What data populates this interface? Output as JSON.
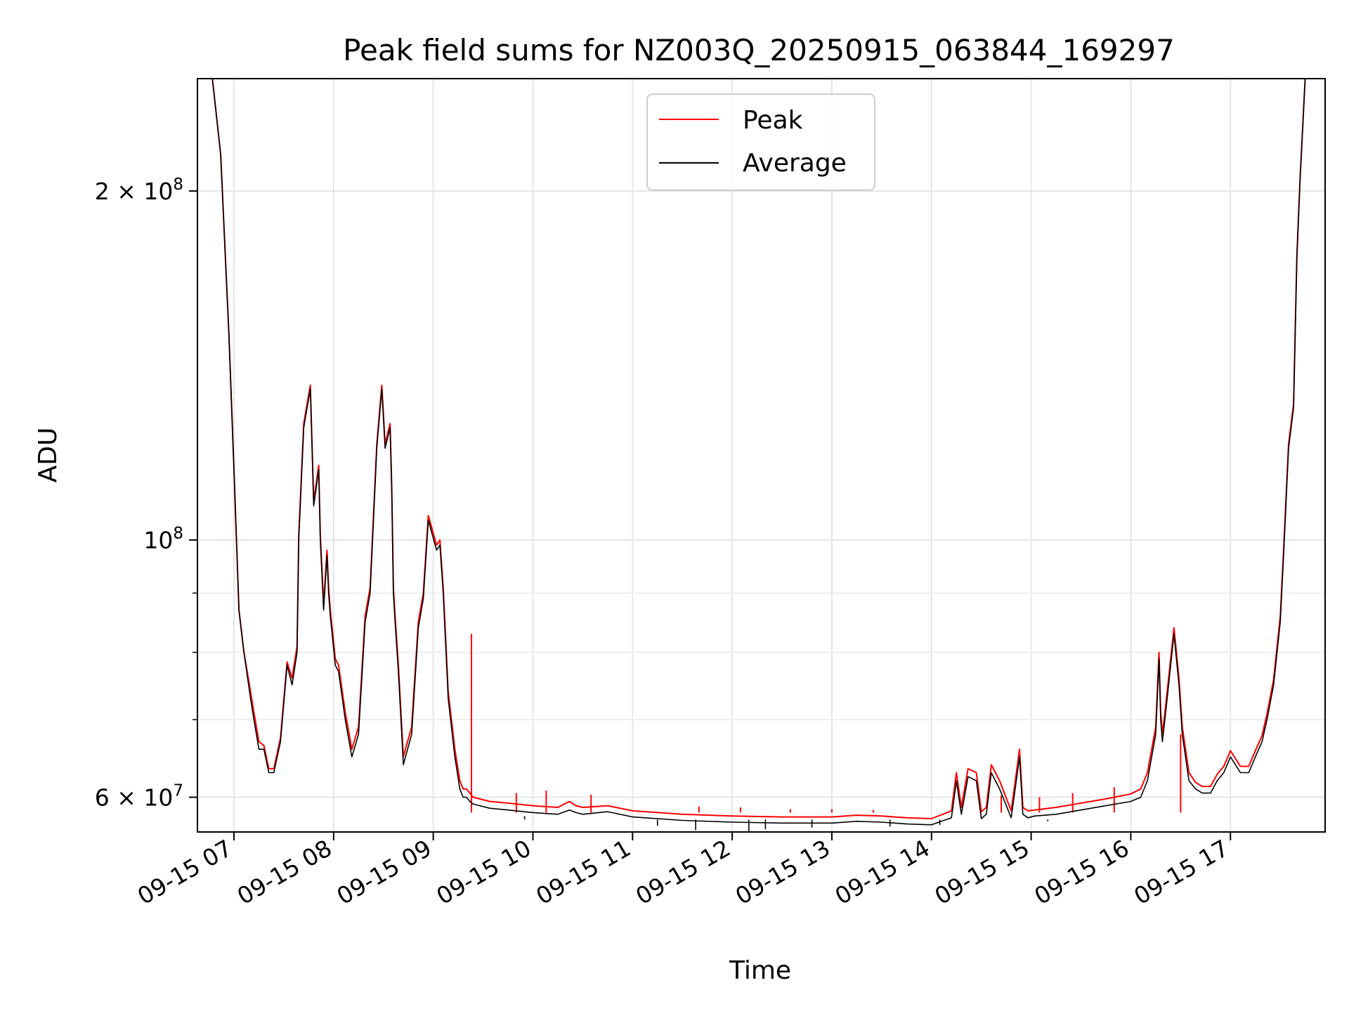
{
  "chart_data": {
    "type": "line",
    "title": "Peak field sums for NZ003Q_20250915_063844_169297",
    "xlabel": "Time",
    "ylabel": "ADU",
    "y_scale": "log",
    "ylim": [
      56000000,
      250000000
    ],
    "xlim": [
      "2025-09-15 06:38",
      "2025-09-15 17:57"
    ],
    "grid": true,
    "legend_position": "upper center",
    "x_ticks": [
      "09-15 07",
      "09-15 08",
      "09-15 09",
      "09-15 10",
      "09-15 11",
      "09-15 12",
      "09-15 13",
      "09-15 14",
      "09-15 15",
      "09-15 16",
      "09-15 17"
    ],
    "x_tick_times": [
      "2025-09-15 07:00",
      "2025-09-15 08:00",
      "2025-09-15 09:00",
      "2025-09-15 10:00",
      "2025-09-15 11:00",
      "2025-09-15 12:00",
      "2025-09-15 13:00",
      "2025-09-15 14:00",
      "2025-09-15 15:00",
      "2025-09-15 16:00",
      "2025-09-15 17:00"
    ],
    "y_ticks": [
      {
        "value": 60000000,
        "mantissa": "6",
        "exp": "7"
      },
      {
        "value": 100000000,
        "mantissa": "",
        "exp": "8"
      },
      {
        "value": 200000000,
        "mantissa": "2",
        "exp": "8"
      }
    ],
    "y_minor_ticks": [
      70000000,
      80000000,
      90000000
    ],
    "series": [
      {
        "name": "Peak",
        "color": "#ff0000"
      },
      {
        "name": "Average",
        "color": "#000000"
      }
    ],
    "x": [
      "2025-09-15 06:47",
      "2025-09-15 06:52",
      "2025-09-15 06:57",
      "2025-09-15 07:00",
      "2025-09-15 07:03",
      "2025-09-15 07:06",
      "2025-09-15 07:10",
      "2025-09-15 07:12",
      "2025-09-15 07:15",
      "2025-09-15 07:18",
      "2025-09-15 07:21",
      "2025-09-15 07:24",
      "2025-09-15 07:28",
      "2025-09-15 07:32",
      "2025-09-15 07:35",
      "2025-09-15 07:38",
      "2025-09-15 07:39",
      "2025-09-15 07:42",
      "2025-09-15 07:46",
      "2025-09-15 07:48",
      "2025-09-15 07:51",
      "2025-09-15 07:52",
      "2025-09-15 07:54",
      "2025-09-15 07:56",
      "2025-09-15 07:57",
      "2025-09-15 07:58",
      "2025-09-15 08:01",
      "2025-09-15 08:03",
      "2025-09-15 08:07",
      "2025-09-15 08:11",
      "2025-09-15 08:15",
      "2025-09-15 08:19",
      "2025-09-15 08:22",
      "2025-09-15 08:26",
      "2025-09-15 08:29",
      "2025-09-15 08:31",
      "2025-09-15 08:34",
      "2025-09-15 08:35",
      "2025-09-15 08:36",
      "2025-09-15 08:37",
      "2025-09-15 08:39",
      "2025-09-15 08:42",
      "2025-09-15 08:47",
      "2025-09-15 08:51",
      "2025-09-15 08:54",
      "2025-09-15 08:57",
      "2025-09-15 09:02",
      "2025-09-15 09:04",
      "2025-09-15 09:06",
      "2025-09-15 09:09",
      "2025-09-15 09:13",
      "2025-09-15 09:16",
      "2025-09-15 09:18",
      "2025-09-15 09:20",
      "2025-09-15 09:22",
      "2025-09-15 09:24",
      "2025-09-15 09:28",
      "2025-09-15 09:34",
      "2025-09-15 09:45",
      "2025-09-15 10:00",
      "2025-09-15 10:15",
      "2025-09-15 10:22",
      "2025-09-15 10:26",
      "2025-09-15 10:30",
      "2025-09-15 10:45",
      "2025-09-15 11:00",
      "2025-09-15 11:30",
      "2025-09-15 12:00",
      "2025-09-15 12:30",
      "2025-09-15 13:00",
      "2025-09-15 13:15",
      "2025-09-15 13:30",
      "2025-09-15 13:45",
      "2025-09-15 14:00",
      "2025-09-15 14:12",
      "2025-09-15 14:15",
      "2025-09-15 14:18",
      "2025-09-15 14:22",
      "2025-09-15 14:27",
      "2025-09-15 14:30",
      "2025-09-15 14:33",
      "2025-09-15 14:36",
      "2025-09-15 14:41",
      "2025-09-15 14:48",
      "2025-09-15 14:53",
      "2025-09-15 14:55",
      "2025-09-15 14:58",
      "2025-09-15 15:02",
      "2025-09-15 15:15",
      "2025-09-15 15:30",
      "2025-09-15 15:45",
      "2025-09-15 16:00",
      "2025-09-15 16:06",
      "2025-09-15 16:10",
      "2025-09-15 16:15",
      "2025-09-15 16:17",
      "2025-09-15 16:18",
      "2025-09-15 16:19",
      "2025-09-15 16:21",
      "2025-09-15 16:26",
      "2025-09-15 16:29",
      "2025-09-15 16:31",
      "2025-09-15 16:35",
      "2025-09-15 16:39",
      "2025-09-15 16:43",
      "2025-09-15 16:48",
      "2025-09-15 16:52",
      "2025-09-15 16:56",
      "2025-09-15 17:00",
      "2025-09-15 17:06",
      "2025-09-15 17:11",
      "2025-09-15 17:15",
      "2025-09-15 17:19",
      "2025-09-15 17:22",
      "2025-09-15 17:26",
      "2025-09-15 17:30",
      "2025-09-15 17:32",
      "2025-09-15 17:35",
      "2025-09-15 17:38",
      "2025-09-15 17:40",
      "2025-09-15 17:42",
      "2025-09-15 17:45"
    ],
    "average": [
      250000000,
      215000000,
      150000000,
      115000000,
      87000000,
      80000000,
      73000000,
      70000000,
      66000000,
      66000000,
      63000000,
      63000000,
      67000000,
      78000000,
      75000000,
      80000000,
      100000000,
      125000000,
      135000000,
      107000000,
      115000000,
      100000000,
      87000000,
      97000000,
      90000000,
      86000000,
      78000000,
      77000000,
      70000000,
      65000000,
      68000000,
      85000000,
      90000000,
      120000000,
      135000000,
      120000000,
      125000000,
      110000000,
      90000000,
      85000000,
      77000000,
      64000000,
      68000000,
      84000000,
      89000000,
      104000000,
      98000000,
      99000000,
      90000000,
      73000000,
      65000000,
      61000000,
      60000000,
      60000000,
      59500000,
      59200000,
      59000000,
      58700000,
      58500000,
      58200000,
      58000000,
      58500000,
      58200000,
      58000000,
      58300000,
      57700000,
      57300000,
      57100000,
      57000000,
      57000000,
      57200000,
      57100000,
      56900000,
      56800000,
      57600000,
      62000000,
      58000000,
      62500000,
      62000000,
      57500000,
      58000000,
      63000000,
      61000000,
      57600000,
      65000000,
      58000000,
      57600000,
      57800000,
      58000000,
      58500000,
      59000000,
      59500000,
      60000000,
      62000000,
      68000000,
      79000000,
      70000000,
      67000000,
      71000000,
      83000000,
      75000000,
      68000000,
      62000000,
      61000000,
      60500000,
      60500000,
      62000000,
      63000000,
      65000000,
      63000000,
      63000000,
      65000000,
      67000000,
      70000000,
      75000000,
      85000000,
      97000000,
      120000000,
      130000000,
      175000000,
      205000000,
      250000000
    ],
    "peak": [
      250000000,
      215000000,
      150000000,
      115000000,
      87000000,
      80000000,
      74000000,
      71000000,
      67000000,
      66500000,
      63500000,
      63500000,
      67500000,
      78500000,
      76000000,
      81000000,
      101000000,
      126000000,
      136000000,
      108000000,
      116000000,
      101000000,
      88000000,
      98000000,
      91000000,
      87000000,
      79000000,
      78000000,
      71000000,
      66000000,
      69000000,
      86000000,
      91000000,
      121000000,
      136000000,
      121000000,
      126000000,
      111000000,
      91000000,
      86000000,
      78000000,
      65000000,
      69000000,
      85000000,
      90000000,
      105000000,
      99000000,
      100000000,
      91000000,
      74000000,
      66000000,
      62000000,
      61000000,
      61000000,
      60500000,
      60000000,
      59800000,
      59500000,
      59300000,
      59000000,
      58800000,
      59500000,
      59000000,
      58800000,
      59000000,
      58400000,
      58000000,
      57800000,
      57700000,
      57700000,
      57900000,
      57800000,
      57600000,
      57500000,
      58400000,
      63000000,
      58800000,
      63500000,
      63000000,
      58300000,
      58800000,
      64000000,
      62000000,
      58400000,
      66000000,
      58800000,
      58400000,
      58500000,
      58800000,
      59300000,
      59800000,
      60400000,
      61000000,
      63000000,
      69000000,
      80000000,
      71000000,
      68000000,
      72000000,
      84000000,
      76000000,
      69000000,
      63000000,
      61800000,
      61300000,
      61300000,
      62800000,
      63800000,
      65800000,
      63800000,
      63800000,
      65800000,
      67800000,
      70800000,
      75800000,
      86000000,
      98000000,
      121000000,
      131000000,
      176000000,
      206000000,
      250000000
    ],
    "peak_spikes": [
      {
        "x": "2025-09-15 09:23",
        "y": 83000000
      },
      {
        "x": "2025-09-15 09:50",
        "y": 60500000
      },
      {
        "x": "2025-09-15 10:08",
        "y": 60800000
      },
      {
        "x": "2025-09-15 10:35",
        "y": 60300000
      },
      {
        "x": "2025-09-15 11:40",
        "y": 58900000
      },
      {
        "x": "2025-09-15 12:05",
        "y": 58800000
      },
      {
        "x": "2025-09-15 12:35",
        "y": 58600000
      },
      {
        "x": "2025-09-15 13:00",
        "y": 58600000
      },
      {
        "x": "2025-09-15 13:25",
        "y": 58500000
      },
      {
        "x": "2025-09-15 14:42",
        "y": 60200000
      },
      {
        "x": "2025-09-15 15:05",
        "y": 60000000
      },
      {
        "x": "2025-09-15 15:25",
        "y": 60500000
      },
      {
        "x": "2025-09-15 15:50",
        "y": 61200000
      },
      {
        "x": "2025-09-15 16:30",
        "y": 68000000
      }
    ],
    "average_dips": [
      {
        "x": "2025-09-15 09:55",
        "y": 57800000
      },
      {
        "x": "2025-09-15 11:15",
        "y": 56700000
      },
      {
        "x": "2025-09-15 11:38",
        "y": 56200000
      },
      {
        "x": "2025-09-15 12:10",
        "y": 56000000
      },
      {
        "x": "2025-09-15 12:20",
        "y": 56300000
      },
      {
        "x": "2025-09-15 12:48",
        "y": 56500000
      },
      {
        "x": "2025-09-15 13:35",
        "y": 56600000
      },
      {
        "x": "2025-09-15 14:05",
        "y": 56800000
      },
      {
        "x": "2025-09-15 15:10",
        "y": 57200000
      }
    ]
  }
}
